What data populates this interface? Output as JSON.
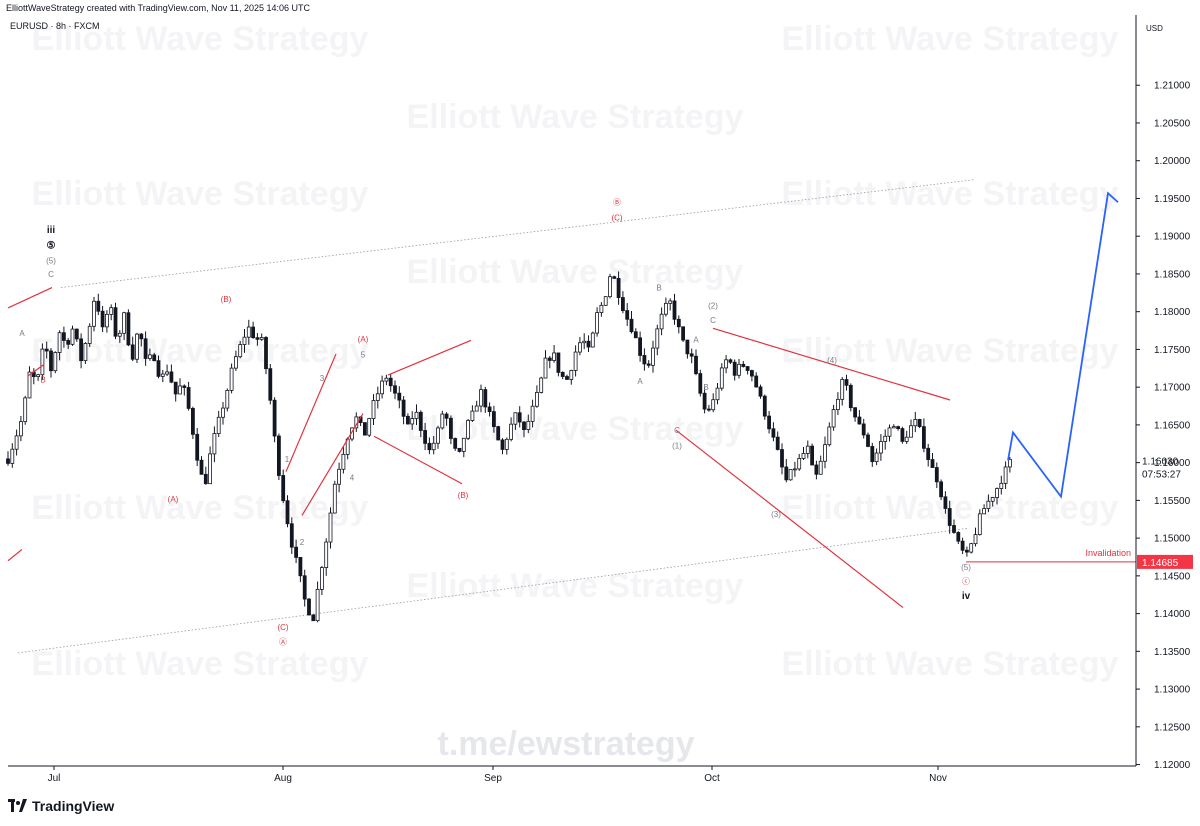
{
  "header": {
    "credit": "ElliottWaveStrategy created with TradingView.com, Nov 11, 2025 14:06 UTC",
    "symbol": "EURUSD · 8h · FXCM",
    "currency": "USD"
  },
  "watermarks": {
    "brand": "Elliott Wave Strategy",
    "link": "t.me/ewstrategy"
  },
  "footer": {
    "logo_text": "TradingView"
  },
  "colors": {
    "up": "#131722",
    "down": "#131722",
    "red": "#e0333f",
    "blue": "#2962ff",
    "channel": "#9598a1",
    "price_tag": "#f23645"
  },
  "chart_data": {
    "type": "candlestick",
    "instrument": "EURUSD",
    "timeframe": "8h",
    "broker": "FXCM",
    "x_ticks": [
      "Jul",
      "Aug",
      "Sep",
      "Oct",
      "Nov"
    ],
    "y_ticks": [
      "1.21000",
      "1.20500",
      "1.20000",
      "1.19500",
      "1.19000",
      "1.18500",
      "1.18000",
      "1.17500",
      "1.17000",
      "1.16500",
      "1.16000",
      "1.15500",
      "1.15000",
      "1.14500",
      "1.14000",
      "1.13500",
      "1.13000",
      "1.12500",
      "1.12000"
    ],
    "ylim": [
      1.1155,
      1.2155
    ],
    "last_price": "1.16030",
    "countdown": "07:53:27",
    "invalidation": {
      "label": "Invalidation",
      "price": 1.14685,
      "price_label": "1.14685"
    },
    "path": [
      [
        0,
        1.1605
      ],
      [
        4,
        1.166
      ],
      [
        6,
        1.172
      ],
      [
        8,
        1.1705
      ],
      [
        10,
        1.176
      ],
      [
        12,
        1.172
      ],
      [
        14,
        1.1775
      ],
      [
        16,
        1.1755
      ],
      [
        18,
        1.178
      ],
      [
        20,
        1.1735
      ],
      [
        22,
        1.177
      ],
      [
        24,
        1.1825
      ],
      [
        26,
        1.1775
      ],
      [
        28,
        1.181
      ],
      [
        30,
        1.176
      ],
      [
        32,
        1.1795
      ],
      [
        34,
        1.1735
      ],
      [
        36,
        1.178
      ],
      [
        38,
        1.173
      ],
      [
        40,
        1.1745
      ],
      [
        42,
        1.171
      ],
      [
        44,
        1.1725
      ],
      [
        46,
        1.169
      ],
      [
        48,
        1.1705
      ],
      [
        50,
        1.1665
      ],
      [
        52,
        1.161
      ],
      [
        54,
        1.1565
      ],
      [
        56,
        1.162
      ],
      [
        58,
        1.1655
      ],
      [
        60,
        1.169
      ],
      [
        62,
        1.173
      ],
      [
        64,
        1.1755
      ],
      [
        66,
        1.178
      ],
      [
        68,
        1.1765
      ],
      [
        70,
        1.176
      ],
      [
        72,
        1.169
      ],
      [
        74,
        1.1605
      ],
      [
        76,
        1.1545
      ],
      [
        78,
        1.1495
      ],
      [
        80,
        1.1455
      ],
      [
        82,
        1.141
      ],
      [
        84,
        1.1395
      ],
      [
        86,
        1.1455
      ],
      [
        88,
        1.151
      ],
      [
        90,
        1.1575
      ],
      [
        92,
        1.161
      ],
      [
        94,
        1.1645
      ],
      [
        96,
        1.166
      ],
      [
        98,
        1.1635
      ],
      [
        100,
        1.167
      ],
      [
        102,
        1.1695
      ],
      [
        104,
        1.1715
      ],
      [
        106,
        1.1695
      ],
      [
        108,
        1.1675
      ],
      [
        110,
        1.1645
      ],
      [
        112,
        1.167
      ],
      [
        114,
        1.164
      ],
      [
        116,
        1.1615
      ],
      [
        118,
        1.1635
      ],
      [
        120,
        1.1675
      ],
      [
        122,
        1.1625
      ],
      [
        124,
        1.1605
      ],
      [
        126,
        1.1645
      ],
      [
        128,
        1.1665
      ],
      [
        130,
        1.1695
      ],
      [
        132,
        1.167
      ],
      [
        134,
        1.164
      ],
      [
        136,
        1.1615
      ],
      [
        138,
        1.1645
      ],
      [
        140,
        1.1665
      ],
      [
        142,
        1.164
      ],
      [
        144,
        1.1665
      ],
      [
        146,
        1.1695
      ],
      [
        148,
        1.1735
      ],
      [
        150,
        1.1745
      ],
      [
        152,
        1.1715
      ],
      [
        154,
        1.171
      ],
      [
        156,
        1.1745
      ],
      [
        158,
        1.1765
      ],
      [
        160,
        1.1745
      ],
      [
        162,
        1.1795
      ],
      [
        164,
        1.1815
      ],
      [
        166,
        1.1855
      ],
      [
        168,
        1.1825
      ],
      [
        170,
        1.1795
      ],
      [
        172,
        1.1775
      ],
      [
        174,
        1.1745
      ],
      [
        176,
        1.1725
      ],
      [
        178,
        1.1765
      ],
      [
        180,
        1.1795
      ],
      [
        182,
        1.1815
      ],
      [
        184,
        1.1785
      ],
      [
        186,
        1.1755
      ],
      [
        188,
        1.174
      ],
      [
        190,
        1.17
      ],
      [
        192,
        1.1665
      ],
      [
        194,
        1.168
      ],
      [
        196,
        1.1715
      ],
      [
        198,
        1.174
      ],
      [
        200,
        1.172
      ],
      [
        202,
        1.173
      ],
      [
        204,
        1.1725
      ],
      [
        206,
        1.17
      ],
      [
        208,
        1.167
      ],
      [
        210,
        1.164
      ],
      [
        212,
        1.161
      ],
      [
        214,
        1.1575
      ],
      [
        216,
        1.159
      ],
      [
        218,
        1.1605
      ],
      [
        220,
        1.162
      ],
      [
        222,
        1.1575
      ],
      [
        224,
        1.1605
      ],
      [
        226,
        1.1645
      ],
      [
        228,
        1.1685
      ],
      [
        230,
        1.171
      ],
      [
        232,
        1.1675
      ],
      [
        234,
        1.165
      ],
      [
        236,
        1.1635
      ],
      [
        238,
        1.16
      ],
      [
        240,
        1.1625
      ],
      [
        242,
        1.164
      ],
      [
        244,
        1.1655
      ],
      [
        246,
        1.1625
      ],
      [
        248,
        1.1645
      ],
      [
        250,
        1.1655
      ],
      [
        252,
        1.1625
      ],
      [
        254,
        1.1595
      ],
      [
        256,
        1.1575
      ],
      [
        258,
        1.1535
      ],
      [
        260,
        1.151
      ],
      [
        262,
        1.1485
      ],
      [
        264,
        1.1475
      ],
      [
        266,
        1.1505
      ],
      [
        268,
        1.1535
      ],
      [
        270,
        1.155
      ],
      [
        272,
        1.1565
      ],
      [
        274,
        1.1585
      ],
      [
        276,
        1.1603
      ]
    ],
    "elliott_labels": [
      {
        "text": "iii",
        "price": 1.1908,
        "at": 51,
        "color": "black"
      },
      {
        "text": "⑤",
        "price": 1.1888,
        "at": 51,
        "color": "black"
      },
      {
        "text": "(5)",
        "price": 1.1868,
        "at": 51,
        "color": "gray"
      },
      {
        "text": "C",
        "price": 1.185,
        "at": 51,
        "color": "gray"
      },
      {
        "text": "A",
        "price": 1.1772,
        "at": 22,
        "color": "gray"
      },
      {
        "text": "B",
        "price": 1.171,
        "at": 43,
        "color": "red"
      },
      {
        "text": "(B)",
        "price": 1.1817,
        "at": 226,
        "color": "red"
      },
      {
        "text": "(A)",
        "price": 1.1552,
        "at": 173,
        "color": "red"
      },
      {
        "text": "(C)",
        "price": 1.1382,
        "at": 283,
        "color": "red"
      },
      {
        "text": "Ⓐ",
        "price": 1.1363,
        "at": 283,
        "color": "red"
      },
      {
        "text": "1",
        "price": 1.1605,
        "at": 287,
        "color": "gray"
      },
      {
        "text": "2",
        "price": 1.1495,
        "at": 302,
        "color": "gray"
      },
      {
        "text": "3",
        "price": 1.1712,
        "at": 322,
        "color": "gray"
      },
      {
        "text": "4",
        "price": 1.158,
        "at": 352,
        "color": "gray"
      },
      {
        "text": "5",
        "price": 1.1743,
        "at": 363,
        "color": "gray"
      },
      {
        "text": "(A)",
        "price": 1.1764,
        "at": 363,
        "color": "red"
      },
      {
        "text": "(B)",
        "price": 1.1557,
        "at": 463,
        "color": "red"
      },
      {
        "text": "Ⓑ",
        "price": 1.1945,
        "at": 617,
        "color": "red"
      },
      {
        "text": "(C)",
        "price": 1.1925,
        "at": 617,
        "color": "red"
      },
      {
        "text": "B",
        "price": 1.1832,
        "at": 659,
        "color": "gray"
      },
      {
        "text": "A",
        "price": 1.1708,
        "at": 640,
        "color": "gray"
      },
      {
        "text": "(2)",
        "price": 1.1808,
        "at": 713,
        "color": "gray"
      },
      {
        "text": "C",
        "price": 1.1789,
        "at": 713,
        "color": "gray"
      },
      {
        "text": "A",
        "price": 1.1763,
        "at": 696,
        "color": "gray"
      },
      {
        "text": "B",
        "price": 1.17,
        "at": 706,
        "color": "gray"
      },
      {
        "text": "C",
        "price": 1.1643,
        "at": 677,
        "color": "gray"
      },
      {
        "text": "(1)",
        "price": 1.1623,
        "at": 677,
        "color": "gray"
      },
      {
        "text": "(3)",
        "price": 1.1532,
        "at": 776,
        "color": "gray"
      },
      {
        "text": "(4)",
        "price": 1.1736,
        "at": 832,
        "color": "gray"
      },
      {
        "text": "(5)",
        "price": 1.1462,
        "at": 966,
        "color": "gray"
      },
      {
        "text": "ⓒ",
        "price": 1.1443,
        "at": 966,
        "color": "red"
      },
      {
        "text": "iv",
        "price": 1.1423,
        "at": 966,
        "color": "black"
      }
    ]
  }
}
